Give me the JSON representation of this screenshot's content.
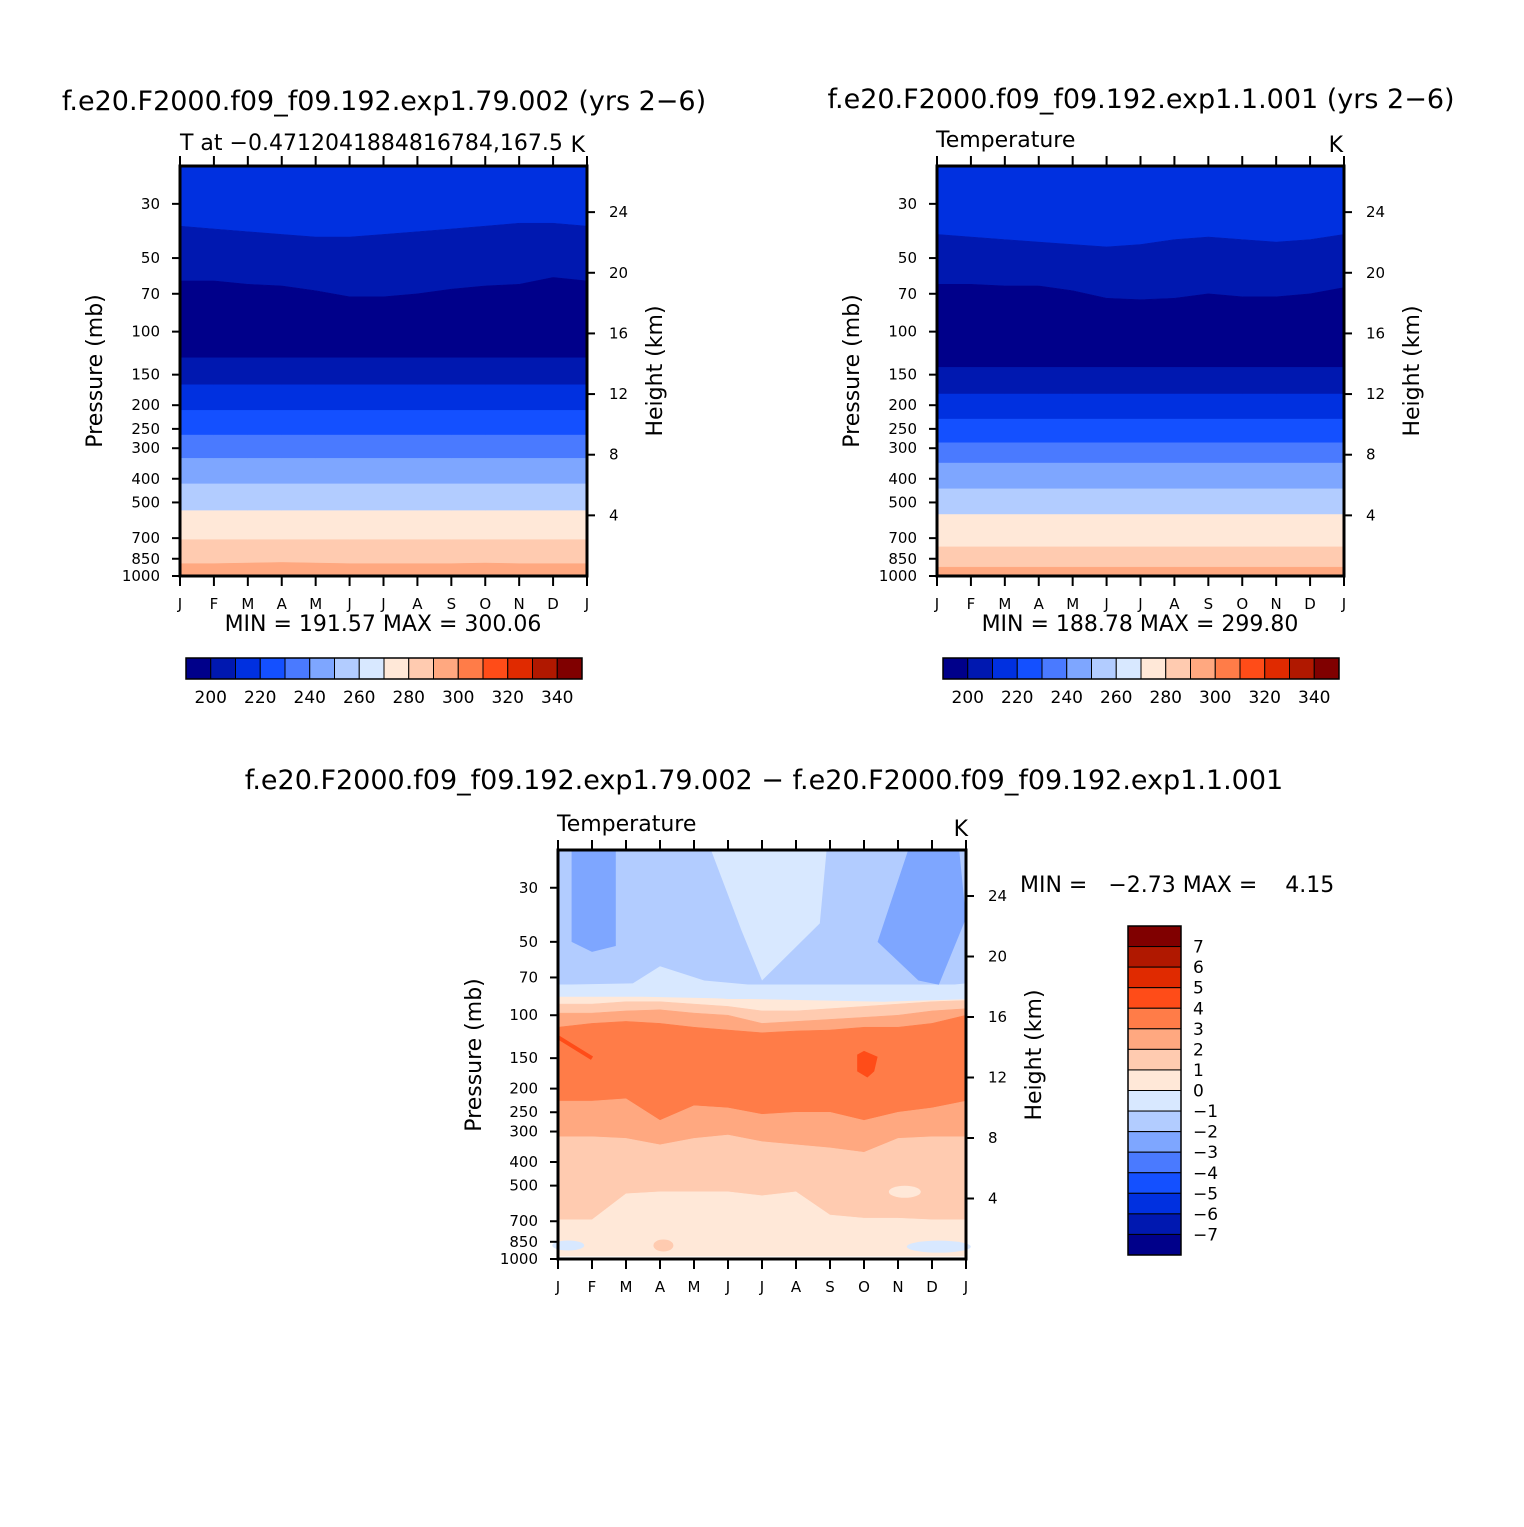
{
  "panels": [
    {
      "title": "f.e20.F2000.f09_f09.192.exp1.79.002 (yrs 2−6)",
      "subtitle_left": "T at −0.4712041884816784,167.5",
      "subtitle_right": "K",
      "minmax": "MIN = 191.57 MAX = 300.06"
    },
    {
      "title": "f.e20.F2000.f09_f09.192.exp1.1.001 (yrs 2−6)",
      "subtitle_left": "Temperature",
      "subtitle_right": "K",
      "minmax": "MIN = 188.78 MAX = 299.80"
    },
    {
      "title": "f.e20.F2000.f09_f09.192.exp1.79.002 − f.e20.F2000.f09_f09.192.exp1.1.001",
      "subtitle_left": "Temperature",
      "subtitle_right": "K",
      "minmax": "MIN =   −2.73 MAX =    4.15"
    }
  ],
  "axes": {
    "ylabel_left": "Pressure (mb)",
    "ylabel_right": "Height (km)",
    "pressure_ticks": [
      "30",
      "50",
      "70",
      "100",
      "150",
      "200",
      "250",
      "300",
      "400",
      "500",
      "700",
      "850",
      "1000"
    ],
    "height_ticks": [
      "24",
      "20",
      "16",
      "12",
      "8",
      "4"
    ],
    "month_ticks": [
      "J",
      "F",
      "M",
      "A",
      "M",
      "J",
      "J",
      "A",
      "S",
      "O",
      "N",
      "D",
      "J"
    ]
  },
  "colorbars": {
    "temperature": {
      "colors": [
        "#00008a",
        "#0018b0",
        "#0030e0",
        "#1450ff",
        "#4a7aff",
        "#7ea6ff",
        "#b2ccff",
        "#d8e8ff",
        "#ffe8d8",
        "#ffcbb0",
        "#ffa880",
        "#ff7c48",
        "#ff4c18",
        "#e02a00",
        "#b01800",
        "#800000"
      ],
      "labels": [
        "200",
        "220",
        "240",
        "260",
        "280",
        "300",
        "320",
        "340"
      ]
    },
    "difference": {
      "colors": [
        "#800000",
        "#b01800",
        "#e02a00",
        "#ff4c18",
        "#ff7c48",
        "#ffa880",
        "#ffcbb0",
        "#ffe8d8",
        "#d8e8ff",
        "#b2ccff",
        "#7ea6ff",
        "#4a7aff",
        "#1450ff",
        "#0030e0",
        "#0018b0",
        "#00008a"
      ],
      "labels": [
        "7",
        "6",
        "5",
        "4",
        "3",
        "2",
        "1",
        "0",
        "−1",
        "−2",
        "−3",
        "−4",
        "−5",
        "−6",
        "−7"
      ]
    }
  },
  "chart_data": [
    {
      "type": "heatmap",
      "title": "f.e20.F2000.f09_f09.192.exp1.79.002 (yrs 2−6)",
      "subtitle": "T at −0.4712041884816784,167.5",
      "units": "K",
      "x": [
        "J",
        "F",
        "M",
        "A",
        "M",
        "J",
        "J",
        "A",
        "S",
        "O",
        "N",
        "D",
        "J"
      ],
      "y_pressure_mb": [
        30,
        50,
        70,
        100,
        150,
        200,
        250,
        300,
        400,
        500,
        700,
        850,
        1000
      ],
      "min": 191.57,
      "max": 300.06,
      "contour_levels": [
        190,
        200,
        210,
        220,
        230,
        240,
        250,
        260,
        270,
        280,
        290,
        300,
        310,
        320,
        330,
        340,
        350
      ],
      "approx_values_K_by_level": [
        [
          205,
          205,
          204,
          203,
          202,
          202,
          202,
          203,
          204,
          205,
          205,
          206,
          205
        ],
        [
          204,
          204,
          203,
          202,
          200,
          199,
          199,
          200,
          201,
          202,
          203,
          204,
          204
        ],
        [
          195,
          195,
          194,
          193,
          192,
          192,
          192,
          192,
          193,
          194,
          194,
          195,
          195
        ],
        [
          196,
          196,
          196,
          196,
          196,
          196,
          196,
          196,
          196,
          196,
          196,
          196,
          196
        ],
        [
          208,
          208,
          208,
          208,
          208,
          208,
          208,
          208,
          208,
          208,
          208,
          208,
          208
        ],
        [
          218,
          218,
          218,
          218,
          218,
          218,
          218,
          218,
          218,
          218,
          218,
          218,
          218
        ],
        [
          225,
          225,
          225,
          225,
          225,
          225,
          225,
          225,
          225,
          225,
          225,
          225,
          225
        ],
        [
          235,
          235,
          235,
          235,
          235,
          235,
          235,
          235,
          235,
          235,
          235,
          235,
          235
        ],
        [
          255,
          255,
          255,
          255,
          255,
          255,
          255,
          255,
          255,
          255,
          255,
          255,
          255
        ],
        [
          265,
          265,
          265,
          265,
          265,
          265,
          265,
          265,
          265,
          265,
          265,
          265,
          265
        ],
        [
          282,
          282,
          282,
          282,
          282,
          282,
          282,
          282,
          282,
          282,
          282,
          282,
          282
        ],
        [
          292,
          292,
          292,
          292,
          292,
          292,
          292,
          292,
          292,
          292,
          292,
          292,
          292
        ],
        [
          299,
          299,
          299,
          299,
          299,
          299,
          299,
          299,
          299,
          299,
          299,
          299,
          299
        ]
      ]
    },
    {
      "type": "heatmap",
      "title": "f.e20.F2000.f09_f09.192.exp1.1.001 (yrs 2−6)",
      "subtitle": "Temperature",
      "units": "K",
      "x": [
        "J",
        "F",
        "M",
        "A",
        "M",
        "J",
        "J",
        "A",
        "S",
        "O",
        "N",
        "D",
        "J"
      ],
      "y_pressure_mb": [
        30,
        50,
        70,
        100,
        150,
        200,
        250,
        300,
        400,
        500,
        700,
        850,
        1000
      ],
      "min": 188.78,
      "max": 299.8,
      "contour_levels": [
        190,
        200,
        210,
        220,
        230,
        240,
        250,
        260,
        270,
        280,
        290,
        300,
        310,
        320,
        330,
        340,
        350
      ],
      "approx_values_K_by_level": [
        [
          206,
          206,
          205,
          204,
          203,
          202,
          202,
          203,
          204,
          205,
          205,
          206,
          206
        ],
        [
          203,
          203,
          202,
          201,
          199,
          198,
          198,
          199,
          200,
          201,
          202,
          203,
          203
        ],
        [
          193,
          193,
          192,
          191,
          190,
          190,
          190,
          190,
          191,
          192,
          192,
          193,
          193
        ],
        [
          194,
          194,
          194,
          194,
          194,
          194,
          194,
          194,
          194,
          194,
          194,
          194,
          194
        ],
        [
          205,
          205,
          205,
          205,
          205,
          205,
          205,
          205,
          205,
          205,
          205,
          205,
          205
        ],
        [
          216,
          216,
          216,
          216,
          216,
          216,
          216,
          216,
          216,
          216,
          216,
          216,
          216
        ],
        [
          224,
          224,
          224,
          224,
          224,
          224,
          224,
          224,
          224,
          224,
          224,
          224,
          224
        ],
        [
          234,
          234,
          234,
          234,
          234,
          234,
          234,
          234,
          234,
          234,
          234,
          234,
          234
        ],
        [
          254,
          254,
          254,
          254,
          254,
          254,
          254,
          254,
          254,
          254,
          254,
          254,
          254
        ],
        [
          264,
          264,
          264,
          264,
          264,
          264,
          264,
          264,
          264,
          264,
          264,
          264,
          264
        ],
        [
          281,
          281,
          281,
          281,
          281,
          281,
          281,
          281,
          281,
          281,
          281,
          281,
          281
        ],
        [
          291,
          291,
          291,
          291,
          291,
          291,
          291,
          291,
          291,
          291,
          291,
          291,
          291
        ],
        [
          299,
          299,
          299,
          299,
          299,
          299,
          299,
          299,
          299,
          299,
          299,
          299,
          299
        ]
      ]
    },
    {
      "type": "heatmap",
      "title": "f.e20.F2000.f09_f09.192.exp1.79.002 − f.e20.F2000.f09_f09.192.exp1.1.001",
      "subtitle": "Temperature",
      "units": "K",
      "x": [
        "J",
        "F",
        "M",
        "A",
        "M",
        "J",
        "J",
        "A",
        "S",
        "O",
        "N",
        "D",
        "J"
      ],
      "y_pressure_mb": [
        30,
        50,
        70,
        100,
        150,
        200,
        250,
        300,
        400,
        500,
        700,
        850,
        1000
      ],
      "min": -2.73,
      "max": 4.15,
      "contour_levels": [
        -7,
        -6,
        -5,
        -4,
        -3,
        -2,
        -1,
        0,
        1,
        2,
        3,
        4,
        5,
        6,
        7
      ],
      "approx_values_K_by_level": [
        [
          -1.5,
          -2.5,
          -1.5,
          -1.2,
          -1.0,
          -0.5,
          -0.3,
          -0.5,
          -1.2,
          -1.5,
          -2.5,
          -2.5,
          -1.5
        ],
        [
          -1.5,
          -2.2,
          -1.5,
          -1.2,
          -1.0,
          -0.8,
          -0.5,
          -0.5,
          -1.0,
          -1.5,
          -2.5,
          -2.5,
          -1.5
        ],
        [
          -1.0,
          -1.2,
          -1.0,
          -0.5,
          -0.8,
          -0.8,
          -1.0,
          -1.0,
          -1.0,
          -1.2,
          -1.2,
          -1.2,
          -0.8
        ],
        [
          1.5,
          1.5,
          1.5,
          1.5,
          1.2,
          1.0,
          0.8,
          0.8,
          1.0,
          1.0,
          1.2,
          1.5,
          2.0
        ],
        [
          3.2,
          3.5,
          3.5,
          3.5,
          3.2,
          3.2,
          2.8,
          3.2,
          3.2,
          4.0,
          3.5,
          3.5,
          3.5
        ],
        [
          3.0,
          3.2,
          3.2,
          3.0,
          3.0,
          3.0,
          3.0,
          3.0,
          3.0,
          3.2,
          3.0,
          3.0,
          3.0
        ],
        [
          2.5,
          2.5,
          2.5,
          2.0,
          2.5,
          2.5,
          2.5,
          2.5,
          2.5,
          2.0,
          2.5,
          2.5,
          2.5
        ],
        [
          1.5,
          1.5,
          1.5,
          1.5,
          1.5,
          1.5,
          1.5,
          1.5,
          1.5,
          1.5,
          1.5,
          1.5,
          1.5
        ],
        [
          1.2,
          1.2,
          1.2,
          1.2,
          1.2,
          1.2,
          1.2,
          1.2,
          1.2,
          1.2,
          1.2,
          1.2,
          1.2
        ],
        [
          1.0,
          1.0,
          0.5,
          0.5,
          0.5,
          0.5,
          0.5,
          0.5,
          1.0,
          1.0,
          0.5,
          1.0,
          1.0
        ],
        [
          0.5,
          0.5,
          0.5,
          0.5,
          0.5,
          0.5,
          0.5,
          0.5,
          0.5,
          0.5,
          0.5,
          0.5,
          0.5
        ],
        [
          -0.2,
          0.5,
          0.5,
          1.2,
          0.5,
          0.5,
          0.5,
          0.5,
          0.5,
          0.5,
          0.5,
          -0.2,
          -0.2
        ],
        [
          0.5,
          0.5,
          0.5,
          0.5,
          0.5,
          0.5,
          0.5,
          0.5,
          0.5,
          0.5,
          0.5,
          0.5,
          0.5
        ]
      ]
    }
  ]
}
